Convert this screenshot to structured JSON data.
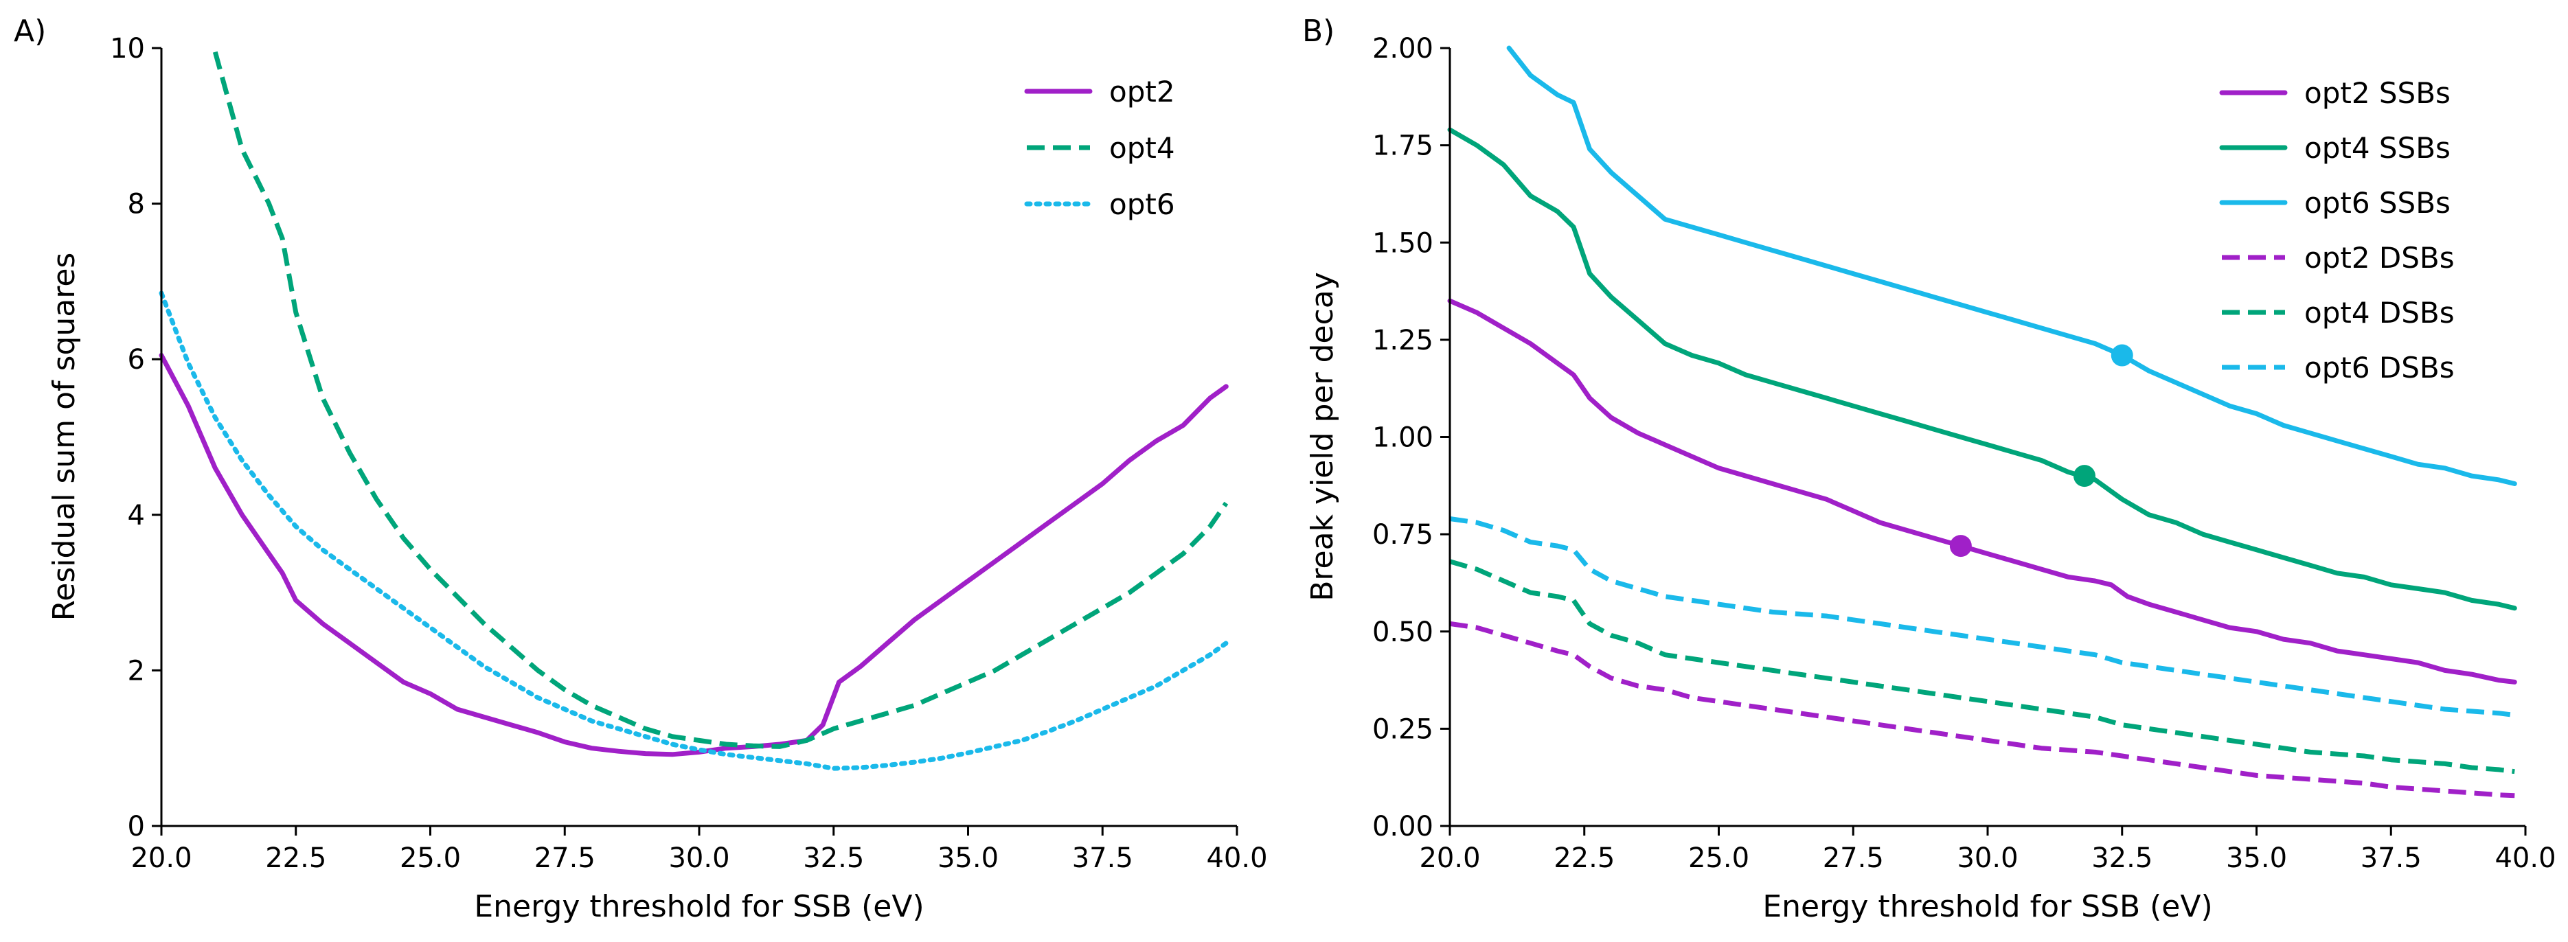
{
  "chart_data": [
    {
      "type": "line",
      "panel_label": "A)",
      "xlabel": "Energy threshold for SSB (eV)",
      "ylabel": "Residual sum of squares",
      "xlim": [
        20.0,
        40.0
      ],
      "ylim": [
        0,
        10
      ],
      "xticks": [
        "20.0",
        "22.5",
        "25.0",
        "27.5",
        "30.0",
        "32.5",
        "35.0",
        "37.5",
        "40.0"
      ],
      "xtick_values": [
        20.0,
        22.5,
        25.0,
        27.5,
        30.0,
        32.5,
        35.0,
        37.5,
        40.0
      ],
      "yticks": [
        "0",
        "2",
        "4",
        "6",
        "8",
        "10"
      ],
      "ytick_values": [
        0,
        2,
        4,
        6,
        8,
        10
      ],
      "grid": false,
      "legend_position": "top-right",
      "series": [
        {
          "name": "opt2",
          "color": "#a020c8",
          "dash": "solid",
          "x": [
            20.0,
            20.5,
            21.0,
            21.5,
            22.0,
            22.25,
            22.5,
            23.0,
            23.5,
            24.0,
            24.5,
            25.0,
            25.5,
            26.0,
            26.5,
            27.0,
            27.5,
            28.0,
            28.5,
            29.0,
            29.5,
            30.0,
            30.5,
            31.0,
            31.5,
            32.0,
            32.3,
            32.6,
            33.0,
            33.5,
            34.0,
            34.5,
            35.0,
            35.5,
            36.0,
            36.5,
            37.0,
            37.5,
            38.0,
            38.5,
            39.0,
            39.5,
            39.8
          ],
          "y": [
            6.05,
            5.4,
            4.6,
            4.0,
            3.5,
            3.25,
            2.9,
            2.6,
            2.35,
            2.1,
            1.85,
            1.7,
            1.5,
            1.4,
            1.3,
            1.2,
            1.08,
            1.0,
            0.96,
            0.93,
            0.92,
            0.95,
            1.0,
            1.02,
            1.05,
            1.1,
            1.3,
            1.85,
            2.05,
            2.35,
            2.65,
            2.9,
            3.15,
            3.4,
            3.65,
            3.9,
            4.15,
            4.4,
            4.7,
            4.95,
            5.15,
            5.5,
            5.65
          ]
        },
        {
          "name": "opt4",
          "color": "#00a57a",
          "dash": "dashed",
          "x": [
            21.0,
            21.5,
            22.0,
            22.25,
            22.5,
            23.0,
            23.5,
            24.0,
            24.5,
            25.0,
            25.5,
            26.0,
            26.5,
            27.0,
            27.5,
            28.0,
            28.5,
            29.0,
            29.5,
            30.0,
            30.5,
            31.0,
            31.5,
            32.0,
            32.5,
            33.0,
            33.5,
            34.0,
            34.5,
            35.0,
            35.5,
            36.0,
            36.5,
            37.0,
            37.5,
            38.0,
            38.5,
            39.0,
            39.5,
            39.8
          ],
          "y": [
            9.95,
            8.7,
            8.0,
            7.55,
            6.6,
            5.5,
            4.8,
            4.2,
            3.7,
            3.3,
            2.95,
            2.6,
            2.3,
            2.0,
            1.75,
            1.55,
            1.4,
            1.25,
            1.15,
            1.1,
            1.05,
            1.03,
            1.02,
            1.1,
            1.25,
            1.35,
            1.45,
            1.55,
            1.7,
            1.85,
            2.0,
            2.2,
            2.4,
            2.6,
            2.8,
            3.0,
            3.25,
            3.5,
            3.85,
            4.15
          ]
        },
        {
          "name": "opt6",
          "color": "#1ab9ea",
          "dash": "dotted",
          "x": [
            20.0,
            20.5,
            21.0,
            21.5,
            22.0,
            22.5,
            23.0,
            23.5,
            24.0,
            24.5,
            25.0,
            25.5,
            26.0,
            26.5,
            27.0,
            27.5,
            28.0,
            28.5,
            29.0,
            29.5,
            30.0,
            30.5,
            31.0,
            31.5,
            32.0,
            32.5,
            33.0,
            33.5,
            34.0,
            34.5,
            35.0,
            35.5,
            36.0,
            36.5,
            37.0,
            37.5,
            38.0,
            38.5,
            39.0,
            39.5,
            39.8
          ],
          "y": [
            6.85,
            5.95,
            5.25,
            4.7,
            4.25,
            3.85,
            3.55,
            3.3,
            3.05,
            2.8,
            2.55,
            2.3,
            2.05,
            1.85,
            1.65,
            1.5,
            1.35,
            1.25,
            1.15,
            1.05,
            0.98,
            0.92,
            0.88,
            0.84,
            0.8,
            0.74,
            0.75,
            0.78,
            0.82,
            0.87,
            0.94,
            1.02,
            1.1,
            1.22,
            1.35,
            1.5,
            1.65,
            1.8,
            2.0,
            2.2,
            2.35
          ]
        }
      ]
    },
    {
      "type": "line",
      "panel_label": "B)",
      "xlabel": "Energy threshold for SSB (eV)",
      "ylabel": "Break yield per decay",
      "xlim": [
        20.0,
        40.0
      ],
      "ylim": [
        0.0,
        2.0
      ],
      "xticks": [
        "20.0",
        "22.5",
        "25.0",
        "27.5",
        "30.0",
        "32.5",
        "35.0",
        "37.5",
        "40.0"
      ],
      "xtick_values": [
        20.0,
        22.5,
        25.0,
        27.5,
        30.0,
        32.5,
        35.0,
        37.5,
        40.0
      ],
      "yticks": [
        "0.00",
        "0.25",
        "0.50",
        "0.75",
        "1.00",
        "1.25",
        "1.50",
        "1.75",
        "2.00"
      ],
      "ytick_values": [
        0.0,
        0.25,
        0.5,
        0.75,
        1.0,
        1.25,
        1.5,
        1.75,
        2.0
      ],
      "grid": false,
      "legend_position": "top-right",
      "series": [
        {
          "name": "opt2 SSBs",
          "color": "#a020c8",
          "dash": "solid",
          "x": [
            20.0,
            20.5,
            21.0,
            21.5,
            22.0,
            22.3,
            22.6,
            23.0,
            23.5,
            24.0,
            24.5,
            25.0,
            25.5,
            26.0,
            26.5,
            27.0,
            27.5,
            28.0,
            28.5,
            29.0,
            29.5,
            30.0,
            30.5,
            31.0,
            31.5,
            32.0,
            32.3,
            32.6,
            33.0,
            33.5,
            34.0,
            34.5,
            35.0,
            35.5,
            36.0,
            36.5,
            37.0,
            37.5,
            38.0,
            38.5,
            39.0,
            39.5,
            39.8
          ],
          "y": [
            1.35,
            1.32,
            1.28,
            1.24,
            1.19,
            1.16,
            1.1,
            1.05,
            1.01,
            0.98,
            0.95,
            0.92,
            0.9,
            0.88,
            0.86,
            0.84,
            0.81,
            0.78,
            0.76,
            0.74,
            0.72,
            0.7,
            0.68,
            0.66,
            0.64,
            0.63,
            0.62,
            0.59,
            0.57,
            0.55,
            0.53,
            0.51,
            0.5,
            0.48,
            0.47,
            0.45,
            0.44,
            0.43,
            0.42,
            0.4,
            0.39,
            0.375,
            0.37
          ]
        },
        {
          "name": "opt4 SSBs",
          "color": "#00a57a",
          "dash": "solid",
          "x": [
            20.0,
            20.5,
            21.0,
            21.5,
            22.0,
            22.3,
            22.6,
            23.0,
            23.5,
            24.0,
            24.5,
            25.0,
            25.5,
            26.0,
            26.5,
            27.0,
            27.5,
            28.0,
            28.5,
            29.0,
            29.5,
            30.0,
            30.5,
            31.0,
            31.5,
            32.0,
            32.5,
            33.0,
            33.5,
            34.0,
            34.5,
            35.0,
            35.5,
            36.0,
            36.5,
            37.0,
            37.5,
            38.0,
            38.5,
            39.0,
            39.5,
            39.8
          ],
          "y": [
            1.79,
            1.75,
            1.7,
            1.62,
            1.58,
            1.54,
            1.42,
            1.36,
            1.3,
            1.24,
            1.21,
            1.19,
            1.16,
            1.14,
            1.12,
            1.1,
            1.08,
            1.06,
            1.04,
            1.02,
            1.0,
            0.98,
            0.96,
            0.94,
            0.91,
            0.89,
            0.84,
            0.8,
            0.78,
            0.75,
            0.73,
            0.71,
            0.69,
            0.67,
            0.65,
            0.64,
            0.62,
            0.61,
            0.6,
            0.58,
            0.57,
            0.56
          ]
        },
        {
          "name": "opt6 SSBs",
          "color": "#1ab9ea",
          "dash": "solid",
          "x": [
            21.1,
            21.5,
            22.0,
            22.3,
            22.6,
            23.0,
            23.5,
            24.0,
            24.5,
            25.0,
            25.5,
            26.0,
            26.5,
            27.0,
            27.5,
            28.0,
            28.5,
            29.0,
            29.5,
            30.0,
            30.5,
            31.0,
            31.5,
            32.0,
            32.5,
            33.0,
            33.5,
            34.0,
            34.5,
            35.0,
            35.5,
            36.0,
            36.5,
            37.0,
            37.5,
            38.0,
            38.5,
            39.0,
            39.5,
            39.8
          ],
          "y": [
            2.0,
            1.93,
            1.88,
            1.86,
            1.74,
            1.68,
            1.62,
            1.56,
            1.54,
            1.52,
            1.5,
            1.48,
            1.46,
            1.44,
            1.42,
            1.4,
            1.38,
            1.36,
            1.34,
            1.32,
            1.3,
            1.28,
            1.26,
            1.24,
            1.21,
            1.17,
            1.14,
            1.11,
            1.08,
            1.06,
            1.03,
            1.01,
            0.99,
            0.97,
            0.95,
            0.93,
            0.92,
            0.9,
            0.89,
            0.88
          ]
        },
        {
          "name": "opt2 DSBs",
          "color": "#a020c8",
          "dash": "dashed",
          "x": [
            20.0,
            20.5,
            21.0,
            21.5,
            22.0,
            22.3,
            22.6,
            23.0,
            23.5,
            24.0,
            24.5,
            25.0,
            25.5,
            26.0,
            26.5,
            27.0,
            27.5,
            28.0,
            28.5,
            29.0,
            29.5,
            30.0,
            30.5,
            31.0,
            31.5,
            32.0,
            32.5,
            33.0,
            33.5,
            34.0,
            34.5,
            35.0,
            35.5,
            36.0,
            36.5,
            37.0,
            37.5,
            38.0,
            38.5,
            39.0,
            39.5,
            39.8
          ],
          "y": [
            0.52,
            0.51,
            0.49,
            0.47,
            0.45,
            0.44,
            0.41,
            0.38,
            0.36,
            0.35,
            0.33,
            0.32,
            0.31,
            0.3,
            0.29,
            0.28,
            0.27,
            0.26,
            0.25,
            0.24,
            0.23,
            0.22,
            0.21,
            0.2,
            0.195,
            0.19,
            0.18,
            0.17,
            0.16,
            0.15,
            0.14,
            0.13,
            0.125,
            0.12,
            0.115,
            0.11,
            0.1,
            0.095,
            0.09,
            0.085,
            0.08,
            0.078
          ]
        },
        {
          "name": "opt4 DSBs",
          "color": "#00a57a",
          "dash": "dashed",
          "x": [
            20.0,
            20.5,
            21.0,
            21.5,
            22.0,
            22.3,
            22.6,
            23.0,
            23.5,
            24.0,
            24.5,
            25.0,
            25.5,
            26.0,
            26.5,
            27.0,
            27.5,
            28.0,
            28.5,
            29.0,
            29.5,
            30.0,
            30.5,
            31.0,
            31.5,
            32.0,
            32.5,
            33.0,
            33.5,
            34.0,
            34.5,
            35.0,
            35.5,
            36.0,
            36.5,
            37.0,
            37.5,
            38.0,
            38.5,
            39.0,
            39.5,
            39.8
          ],
          "y": [
            0.68,
            0.66,
            0.63,
            0.6,
            0.59,
            0.58,
            0.52,
            0.49,
            0.47,
            0.44,
            0.43,
            0.42,
            0.41,
            0.4,
            0.39,
            0.38,
            0.37,
            0.36,
            0.35,
            0.34,
            0.33,
            0.32,
            0.31,
            0.3,
            0.29,
            0.28,
            0.26,
            0.25,
            0.24,
            0.23,
            0.22,
            0.21,
            0.2,
            0.19,
            0.185,
            0.18,
            0.17,
            0.165,
            0.16,
            0.15,
            0.145,
            0.14
          ]
        },
        {
          "name": "opt6 DSBs",
          "color": "#1ab9ea",
          "dash": "dashed",
          "x": [
            20.0,
            20.5,
            21.0,
            21.5,
            22.0,
            22.3,
            22.6,
            23.0,
            23.5,
            24.0,
            24.5,
            25.0,
            25.5,
            26.0,
            26.5,
            27.0,
            27.5,
            28.0,
            28.5,
            29.0,
            29.5,
            30.0,
            30.5,
            31.0,
            31.5,
            32.0,
            32.5,
            33.0,
            33.5,
            34.0,
            34.5,
            35.0,
            35.5,
            36.0,
            36.5,
            37.0,
            37.5,
            38.0,
            38.5,
            39.0,
            39.5,
            39.8
          ],
          "y": [
            0.79,
            0.78,
            0.76,
            0.73,
            0.72,
            0.71,
            0.66,
            0.63,
            0.61,
            0.59,
            0.58,
            0.57,
            0.56,
            0.55,
            0.545,
            0.54,
            0.53,
            0.52,
            0.51,
            0.5,
            0.49,
            0.48,
            0.47,
            0.46,
            0.45,
            0.44,
            0.42,
            0.41,
            0.4,
            0.39,
            0.38,
            0.37,
            0.36,
            0.35,
            0.34,
            0.33,
            0.32,
            0.31,
            0.3,
            0.295,
            0.29,
            0.285
          ]
        }
      ],
      "markers": [
        {
          "series": "opt2 SSBs",
          "x": 29.5,
          "y": 0.72,
          "color": "#a020c8"
        },
        {
          "series": "opt4 SSBs",
          "x": 31.8,
          "y": 0.9,
          "color": "#00a57a"
        },
        {
          "series": "opt6 SSBs",
          "x": 32.5,
          "y": 1.21,
          "color": "#1ab9ea"
        }
      ]
    }
  ]
}
